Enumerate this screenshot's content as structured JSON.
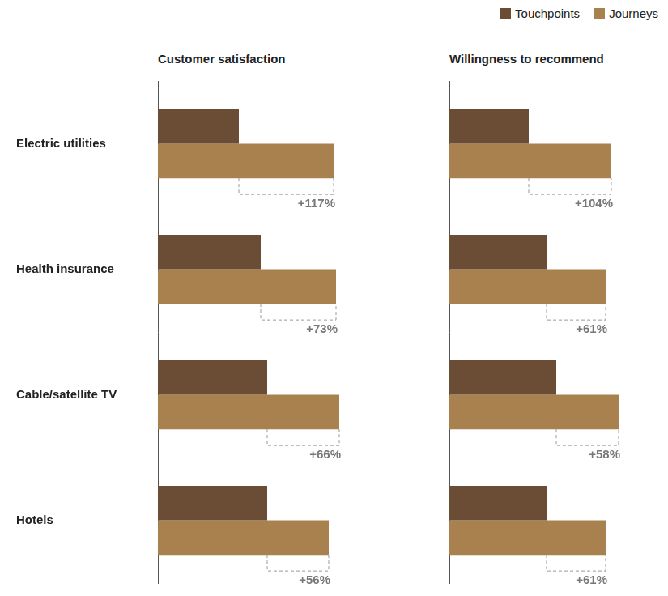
{
  "chart_data": [
    {
      "type": "bar",
      "title": "Customer satisfaction",
      "orientation": "horizontal",
      "categories": [
        "Electric utilities",
        "Health insurance",
        "Cable/satellite TV",
        "Hotels"
      ],
      "series": [
        {
          "name": "Touchpoints",
          "color": "#6b4c35",
          "values": [
            100,
            127,
            135,
            135
          ]
        },
        {
          "name": "Journeys",
          "color": "#a8814e",
          "values": [
            217,
            220,
            224,
            211
          ]
        }
      ],
      "annotations": [
        "+117%",
        "+73%",
        "+66%",
        "+56%"
      ],
      "xlim": [
        0,
        230
      ],
      "tick_labels": "y",
      "grid": false
    },
    {
      "type": "bar",
      "title": "Willingness to recommend",
      "orientation": "horizontal",
      "categories": [
        "Electric utilities",
        "Health insurance",
        "Cable/satellite TV",
        "Hotels"
      ],
      "series": [
        {
          "name": "Touchpoints",
          "color": "#6b4c35",
          "values": [
            98,
            120,
            132,
            120
          ]
        },
        {
          "name": "Journeys",
          "color": "#a8814e",
          "values": [
            200,
            193,
            209,
            193
          ]
        }
      ],
      "annotations": [
        "+104%",
        "+61%",
        "+58%",
        "+61%"
      ],
      "xlim": [
        0,
        230
      ],
      "tick_labels": false,
      "grid": false,
      "legend": "top-right"
    }
  ]
}
